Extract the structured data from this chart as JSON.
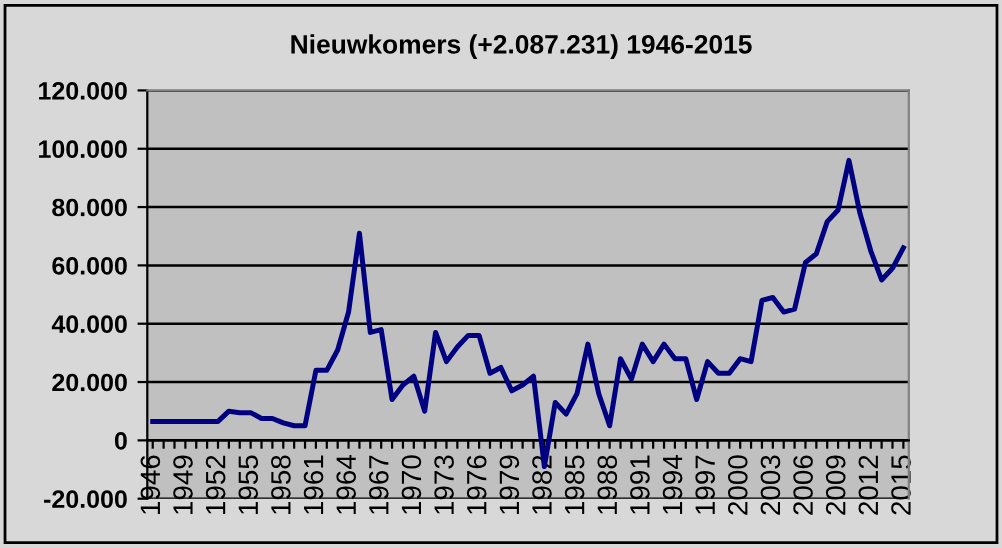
{
  "chart_data": {
    "type": "line",
    "title": "Nieuwkomers (+2.087.231) 1946-2015",
    "categories": [
      "1946",
      null,
      null,
      "1949",
      null,
      null,
      "1952",
      null,
      null,
      "1955",
      null,
      null,
      "1958",
      null,
      null,
      "1961",
      null,
      null,
      "1964",
      null,
      null,
      "1967",
      null,
      null,
      "1970",
      null,
      null,
      "1973",
      null,
      null,
      "1976",
      null,
      null,
      "1979",
      null,
      null,
      "1982",
      null,
      null,
      "1985",
      null,
      null,
      "1988",
      null,
      null,
      "1991",
      null,
      null,
      "1994",
      null,
      null,
      "1997",
      null,
      null,
      "2000",
      null,
      null,
      "2003",
      null,
      null,
      "2006",
      null,
      null,
      "2009",
      null,
      null,
      "2012",
      null,
      null,
      "2015"
    ],
    "series": [
      {
        "color": "#000080",
        "values": [
          6500,
          6500,
          6500,
          6500,
          6500,
          6500,
          6500,
          10000,
          9500,
          9500,
          7500,
          7500,
          6000,
          5000,
          5000,
          24000,
          24000,
          31000,
          44000,
          71000,
          37000,
          38000,
          14000,
          19000,
          22000,
          10000,
          37000,
          27000,
          32000,
          36000,
          36000,
          23000,
          25000,
          17000,
          19000,
          22000,
          -9000,
          13000,
          9000,
          16000,
          33000,
          16000,
          5000,
          28000,
          21000,
          33000,
          27000,
          33000,
          28000,
          28000,
          14000,
          27000,
          23000,
          23000,
          28000,
          27000,
          48000,
          49000,
          44000,
          45000,
          61000,
          64000,
          75000,
          79000,
          96000,
          78000,
          65000,
          55000,
          59000,
          66000
        ]
      }
    ],
    "ylim": [
      -20000,
      120000
    ],
    "yticks": [
      {
        "value": -20000,
        "label": "-20.000"
      },
      {
        "value": 0,
        "label": "0"
      },
      {
        "value": 20000,
        "label": "20.000"
      },
      {
        "value": 40000,
        "label": "40.000"
      },
      {
        "value": 60000,
        "label": "60.000"
      },
      {
        "value": 80000,
        "label": "80.000"
      },
      {
        "value": 100000,
        "label": "100.000"
      },
      {
        "value": 120000,
        "label": "120.000"
      }
    ],
    "grid": "y",
    "marker": "none",
    "line_style": "solid",
    "legend": false
  }
}
